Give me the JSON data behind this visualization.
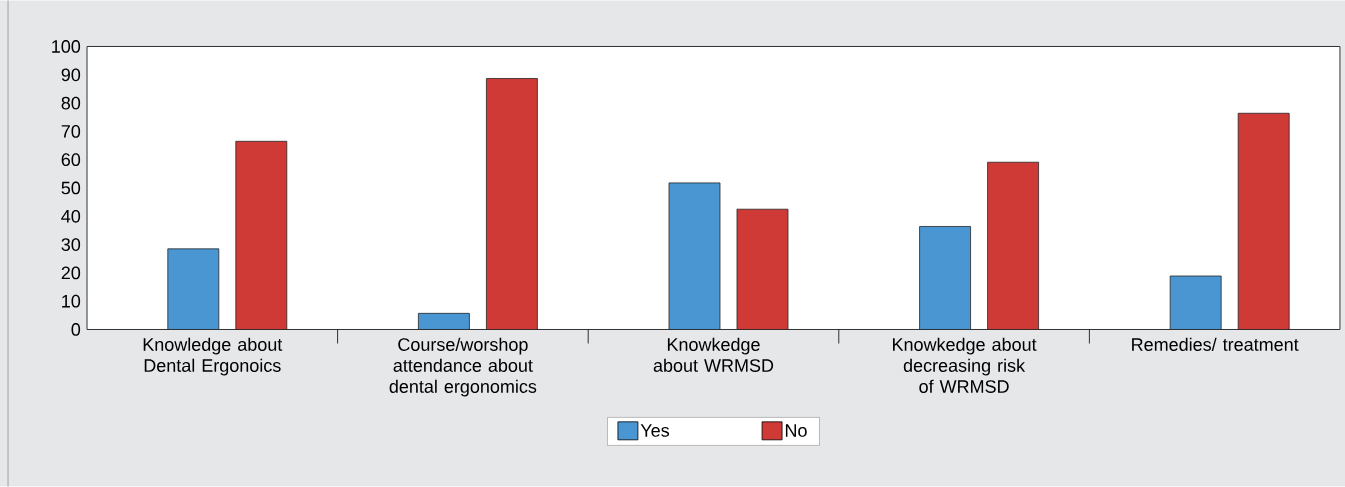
{
  "chart_data": {
    "type": "bar",
    "categories": [
      "Knowledge about Dental Ergonoics",
      "Course/worshop attendance about dental ergonomics",
      "Knowkedge about WRMSD",
      "Knowkedge about decreasing risk of WRMSD",
      "Remedies/ treatment"
    ],
    "series": [
      {
        "name": "Yes",
        "color": "#4a96d2",
        "values": [
          28.5,
          5.7,
          51.8,
          36.4,
          18.9
        ]
      },
      {
        "name": "No",
        "color": "#cf3a37",
        "values": [
          66.5,
          88.7,
          42.5,
          59.1,
          76.4
        ]
      }
    ],
    "ylim": [
      0,
      100
    ],
    "yticks": [
      0,
      10,
      20,
      30,
      40,
      50,
      60,
      70,
      80,
      90,
      100
    ],
    "grid": false,
    "legend": "bottom"
  }
}
